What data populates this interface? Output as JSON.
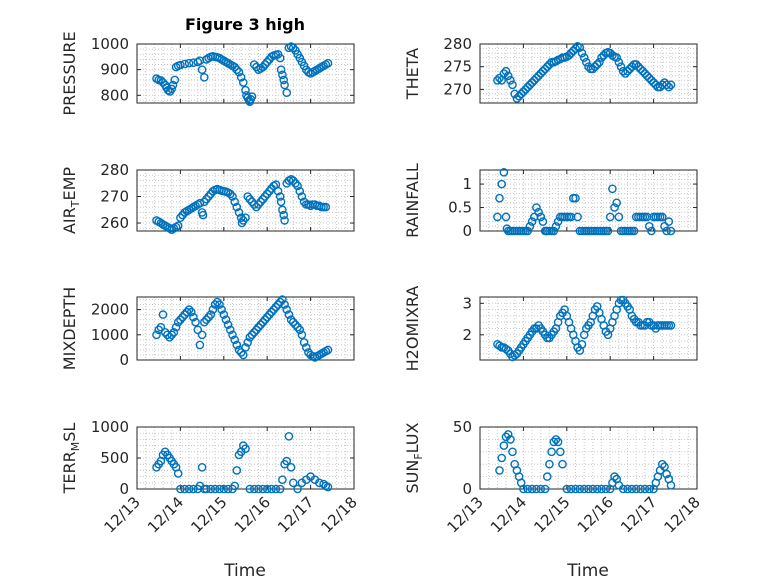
{
  "figure": {
    "title": "Figure 3 high",
    "marker_color": "#0072BD",
    "x_ticks": [
      "12/13",
      "12/14",
      "12/15",
      "12/16",
      "12/17",
      "12/18"
    ],
    "x_range": [
      13,
      18
    ],
    "xlabel": "Time"
  },
  "chart_data": [
    {
      "type": "scatter",
      "name": "pressure",
      "ylabel": "PRESSURE",
      "ylim": [
        770,
        1000
      ],
      "yticks": [
        800,
        900,
        1000
      ],
      "grid": true,
      "x": [
        13.45,
        13.5,
        13.55,
        13.6,
        13.65,
        13.68,
        13.72,
        13.76,
        13.8,
        13.83,
        13.87,
        13.9,
        13.95,
        14.0,
        14.1,
        14.2,
        14.3,
        14.4,
        14.45,
        14.5,
        14.55,
        14.6,
        14.65,
        14.7,
        14.75,
        14.8,
        14.85,
        14.9,
        14.95,
        15.0,
        15.05,
        15.1,
        15.15,
        15.2,
        15.25,
        15.3,
        15.35,
        15.4,
        15.45,
        15.5,
        15.52,
        15.55,
        15.58,
        15.6,
        15.62,
        15.65,
        15.7,
        15.75,
        15.8,
        15.85,
        15.9,
        15.95,
        16.0,
        16.05,
        16.1,
        16.15,
        16.2,
        16.25,
        16.3,
        16.32,
        16.35,
        16.38,
        16.4,
        16.45,
        16.5,
        16.55,
        16.6,
        16.65,
        16.7,
        16.75,
        16.8,
        16.85,
        16.9,
        16.95,
        17.0,
        17.05,
        17.1,
        17.15,
        17.2,
        17.25,
        17.3,
        17.35,
        17.4
      ],
      "y": [
        865,
        860,
        858,
        850,
        840,
        830,
        820,
        815,
        825,
        840,
        860,
        910,
        915,
        918,
        922,
        925,
        927,
        930,
        935,
        900,
        870,
        940,
        945,
        950,
        952,
        950,
        948,
        945,
        940,
        935,
        930,
        925,
        920,
        915,
        910,
        900,
        890,
        870,
        850,
        820,
        800,
        790,
        780,
        775,
        785,
        795,
        920,
        910,
        900,
        905,
        910,
        920,
        930,
        940,
        950,
        955,
        958,
        960,
        945,
        900,
        880,
        860,
        840,
        810,
        985,
        990,
        985,
        975,
        960,
        945,
        930,
        915,
        900,
        890,
        885,
        890,
        895,
        900,
        905,
        910,
        915,
        920,
        925
      ]
    },
    {
      "type": "scatter",
      "name": "theta",
      "ylabel": "THETA",
      "ylim": [
        267,
        280
      ],
      "yticks": [
        270,
        275,
        280
      ],
      "grid": true,
      "x": [
        13.4,
        13.45,
        13.5,
        13.55,
        13.6,
        13.65,
        13.7,
        13.75,
        13.8,
        13.85,
        13.9,
        13.95,
        14.0,
        14.05,
        14.1,
        14.15,
        14.2,
        14.25,
        14.3,
        14.35,
        14.4,
        14.45,
        14.5,
        14.55,
        14.6,
        14.65,
        14.7,
        14.75,
        14.8,
        14.85,
        14.9,
        14.95,
        15.0,
        15.05,
        15.1,
        15.15,
        15.2,
        15.25,
        15.3,
        15.35,
        15.4,
        15.45,
        15.5,
        15.55,
        15.6,
        15.65,
        15.7,
        15.75,
        15.8,
        15.85,
        15.9,
        15.95,
        16.0,
        16.05,
        16.1,
        16.15,
        16.2,
        16.25,
        16.3,
        16.35,
        16.4,
        16.45,
        16.5,
        16.55,
        16.6,
        16.65,
        16.7,
        16.75,
        16.8,
        16.85,
        16.9,
        16.95,
        17.0,
        17.05,
        17.1,
        17.15,
        17.2,
        17.25,
        17.3,
        17.35,
        17.4
      ],
      "y": [
        272,
        272.5,
        272,
        273.5,
        274,
        273,
        272,
        271,
        269,
        268,
        268.5,
        269,
        269.5,
        270,
        270.5,
        271,
        271.5,
        272,
        272.5,
        273,
        273.5,
        274,
        274.5,
        275,
        275.5,
        276,
        276,
        276.2,
        276.5,
        276.7,
        277,
        277,
        277.2,
        277.5,
        278,
        278.5,
        279,
        279.5,
        279.2,
        278,
        277,
        276,
        275,
        274.5,
        274.5,
        275,
        275.5,
        276,
        277,
        277.5,
        278,
        278.2,
        278,
        277.5,
        277.2,
        277,
        276,
        275,
        274,
        273.5,
        274,
        274.5,
        275,
        275.5,
        275.5,
        275,
        274.5,
        274,
        273.5,
        273,
        272.5,
        272,
        271.5,
        271,
        270.5,
        270.5,
        271,
        271.5,
        271,
        270.5,
        271
      ]
    },
    {
      "type": "scatter",
      "name": "air-temp",
      "ylabel": "AIR_TEMP",
      "ylim": [
        257,
        280
      ],
      "yticks": [
        260,
        270,
        280
      ],
      "grid": true,
      "x": [
        13.45,
        13.5,
        13.55,
        13.6,
        13.65,
        13.7,
        13.75,
        13.8,
        13.85,
        13.9,
        13.95,
        14.0,
        14.05,
        14.1,
        14.15,
        14.2,
        14.25,
        14.3,
        14.35,
        14.4,
        14.45,
        14.5,
        14.52,
        14.55,
        14.6,
        14.65,
        14.7,
        14.75,
        14.8,
        14.85,
        14.9,
        14.95,
        15.0,
        15.05,
        15.1,
        15.15,
        15.2,
        15.25,
        15.3,
        15.35,
        15.4,
        15.42,
        15.45,
        15.5,
        15.55,
        15.6,
        15.65,
        15.7,
        15.75,
        15.8,
        15.85,
        15.9,
        15.95,
        16.0,
        16.05,
        16.1,
        16.15,
        16.2,
        16.25,
        16.3,
        16.32,
        16.35,
        16.38,
        16.4,
        16.45,
        16.5,
        16.55,
        16.6,
        16.65,
        16.7,
        16.75,
        16.8,
        16.85,
        16.9,
        16.95,
        17.0,
        17.05,
        17.1,
        17.15,
        17.2,
        17.25,
        17.3,
        17.35
      ],
      "y": [
        261,
        260.5,
        260,
        259.5,
        259,
        258.5,
        258,
        257.5,
        258,
        258.5,
        259,
        262,
        263,
        264,
        264.5,
        265,
        265.5,
        266,
        266.5,
        267,
        267.5,
        264,
        263,
        268,
        269,
        270,
        271,
        272,
        272.5,
        272.8,
        272.5,
        272.2,
        272,
        271.8,
        271.5,
        271,
        270,
        268,
        266,
        264,
        262,
        260,
        261,
        262,
        270,
        269,
        268,
        267,
        266,
        267,
        268,
        269,
        270,
        271,
        272,
        273,
        274,
        274.5,
        272,
        270,
        268,
        265,
        263,
        261,
        275,
        276,
        276.5,
        276,
        275,
        274,
        272,
        270,
        268,
        267,
        267,
        266.5,
        267,
        267,
        266.5,
        266.5,
        266,
        266,
        266
      ]
    },
    {
      "type": "scatter",
      "name": "rainfall",
      "ylabel": "RAINFALL",
      "ylim": [
        0,
        1.3
      ],
      "yticks": [
        0,
        0.5,
        1
      ],
      "grid": true,
      "x": [
        13.4,
        13.45,
        13.5,
        13.55,
        13.6,
        13.62,
        13.65,
        13.7,
        13.75,
        13.8,
        13.85,
        13.9,
        13.95,
        14.0,
        14.05,
        14.1,
        14.15,
        14.2,
        14.25,
        14.3,
        14.35,
        14.4,
        14.45,
        14.5,
        14.52,
        14.55,
        14.6,
        14.65,
        14.7,
        14.75,
        14.8,
        14.85,
        14.9,
        14.95,
        15.0,
        15.05,
        15.1,
        15.15,
        15.2,
        15.25,
        15.3,
        15.35,
        15.4,
        15.45,
        15.5,
        15.55,
        15.6,
        15.65,
        15.7,
        15.75,
        15.8,
        15.85,
        15.9,
        15.95,
        16.0,
        16.05,
        16.1,
        16.15,
        16.2,
        16.25,
        16.3,
        16.35,
        16.4,
        16.45,
        16.5,
        16.55,
        16.6,
        16.65,
        16.7,
        16.75,
        16.8,
        16.85,
        16.9,
        16.95,
        17.0,
        17.05,
        17.1,
        17.15,
        17.2,
        17.25,
        17.3,
        17.35,
        17.4
      ],
      "y": [
        0.3,
        0.7,
        1.0,
        1.25,
        0.3,
        0.05,
        0,
        0,
        0,
        0,
        0,
        0,
        0,
        0,
        0,
        0,
        0.1,
        0.2,
        0.3,
        0.5,
        0.4,
        0.3,
        0.2,
        0,
        0,
        0,
        0,
        0,
        0,
        0.1,
        0.2,
        0.3,
        0.3,
        0.3,
        0.3,
        0.3,
        0.3,
        0.7,
        0.7,
        0.3,
        0,
        0,
        0,
        0,
        0,
        0,
        0,
        0,
        0,
        0,
        0,
        0,
        0,
        0,
        0.3,
        0.9,
        0.5,
        0.6,
        0.3,
        0,
        0,
        0,
        0,
        0,
        0,
        0,
        0.3,
        0.3,
        0.3,
        0.3,
        0.3,
        0.3,
        0.1,
        0,
        0.3,
        0.3,
        0.3,
        0.3,
        0.3,
        0.1,
        0,
        0.2,
        0
      ]
    },
    {
      "type": "scatter",
      "name": "mixdepth",
      "ylabel": "MIXDEPTH",
      "ylim": [
        0,
        2500
      ],
      "yticks": [
        0,
        1000,
        2000
      ],
      "grid": true,
      "x": [
        13.45,
        13.5,
        13.55,
        13.6,
        13.65,
        13.7,
        13.75,
        13.8,
        13.85,
        13.9,
        13.95,
        14.0,
        14.05,
        14.1,
        14.15,
        14.2,
        14.25,
        14.3,
        14.35,
        14.4,
        14.45,
        14.5,
        14.55,
        14.6,
        14.65,
        14.7,
        14.75,
        14.8,
        14.85,
        14.9,
        14.95,
        15.0,
        15.05,
        15.1,
        15.15,
        15.2,
        15.25,
        15.3,
        15.35,
        15.4,
        15.45,
        15.5,
        15.55,
        15.6,
        15.65,
        15.7,
        15.75,
        15.8,
        15.85,
        15.9,
        15.95,
        16.0,
        16.05,
        16.1,
        16.15,
        16.2,
        16.25,
        16.3,
        16.35,
        16.4,
        16.45,
        16.5,
        16.55,
        16.6,
        16.65,
        16.7,
        16.75,
        16.8,
        16.85,
        16.9,
        16.95,
        17.0,
        17.05,
        17.1,
        17.15,
        17.2,
        17.25,
        17.3,
        17.35,
        17.4
      ],
      "y": [
        1000,
        1200,
        1300,
        1800,
        1100,
        1000,
        900,
        1000,
        1100,
        1300,
        1500,
        1600,
        1700,
        1800,
        1900,
        2000,
        1900,
        1700,
        1500,
        1200,
        600,
        1000,
        1500,
        1600,
        1700,
        1800,
        2000,
        2200,
        2300,
        2200,
        2000,
        1800,
        1600,
        1400,
        1200,
        1000,
        800,
        600,
        400,
        300,
        200,
        500,
        700,
        900,
        1000,
        1100,
        1200,
        1300,
        1400,
        1500,
        1600,
        1700,
        1800,
        1900,
        2000,
        2100,
        2200,
        2300,
        2400,
        2200,
        2000,
        1800,
        1600,
        1500,
        1400,
        1300,
        1200,
        1000,
        700,
        500,
        300,
        200,
        150,
        100,
        150,
        200,
        250,
        300,
        350,
        400
      ]
    },
    {
      "type": "scatter",
      "name": "h2omixra",
      "ylabel": "H2OMIXRA",
      "ylim": [
        1.2,
        3.2
      ],
      "yticks": [
        2,
        3
      ],
      "grid": true,
      "x": [
        13.4,
        13.45,
        13.5,
        13.55,
        13.6,
        13.65,
        13.7,
        13.75,
        13.8,
        13.85,
        13.9,
        13.95,
        14.0,
        14.05,
        14.1,
        14.15,
        14.2,
        14.25,
        14.3,
        14.35,
        14.4,
        14.45,
        14.5,
        14.55,
        14.6,
        14.65,
        14.7,
        14.75,
        14.8,
        14.85,
        14.9,
        14.95,
        15.0,
        15.05,
        15.1,
        15.15,
        15.2,
        15.25,
        15.3,
        15.35,
        15.4,
        15.45,
        15.5,
        15.55,
        15.6,
        15.65,
        15.7,
        15.75,
        15.8,
        15.85,
        15.9,
        15.95,
        16.0,
        16.05,
        16.1,
        16.15,
        16.2,
        16.25,
        16.3,
        16.35,
        16.4,
        16.45,
        16.5,
        16.55,
        16.6,
        16.65,
        16.7,
        16.75,
        16.8,
        16.85,
        16.9,
        16.95,
        17.0,
        17.05,
        17.1,
        17.15,
        17.2,
        17.25,
        17.3,
        17.35,
        17.4
      ],
      "y": [
        1.7,
        1.65,
        1.6,
        1.6,
        1.55,
        1.5,
        1.4,
        1.3,
        1.35,
        1.4,
        1.5,
        1.6,
        1.7,
        1.8,
        1.9,
        2.0,
        2.1,
        2.2,
        2.2,
        2.3,
        2.2,
        2.1,
        2.0,
        1.9,
        1.9,
        2.0,
        2.1,
        2.2,
        2.4,
        2.6,
        2.7,
        2.8,
        2.6,
        2.4,
        2.2,
        2.0,
        1.8,
        1.6,
        1.5,
        1.7,
        2.0,
        2.2,
        2.3,
        2.4,
        2.6,
        2.8,
        2.9,
        2.7,
        2.5,
        2.3,
        2.1,
        2.0,
        2.2,
        2.4,
        2.6,
        2.8,
        3.0,
        3.1,
        3.1,
        3.0,
        2.9,
        2.8,
        2.6,
        2.5,
        2.4,
        2.4,
        2.3,
        2.3,
        2.3,
        2.4,
        2.4,
        2.3,
        2.3,
        2.2,
        2.3,
        2.3,
        2.3,
        2.3,
        2.3,
        2.3,
        2.3
      ]
    },
    {
      "type": "scatter",
      "name": "terr-msl",
      "ylabel": "TERR_MSL",
      "ylim": [
        0,
        1000
      ],
      "yticks": [
        0,
        500,
        1000
      ],
      "grid": true,
      "x": [
        13.45,
        13.5,
        13.55,
        13.6,
        13.65,
        13.7,
        13.75,
        13.8,
        13.85,
        13.9,
        13.95,
        14.0,
        14.1,
        14.2,
        14.3,
        14.4,
        14.45,
        14.5,
        14.55,
        14.6,
        14.7,
        14.8,
        14.9,
        15.0,
        15.1,
        15.2,
        15.25,
        15.3,
        15.35,
        15.4,
        15.45,
        15.5,
        15.6,
        15.7,
        15.8,
        15.9,
        16.0,
        16.1,
        16.2,
        16.3,
        16.35,
        16.4,
        16.45,
        16.5,
        16.55,
        16.6,
        16.7,
        16.8,
        16.9,
        17.0,
        17.1,
        17.2,
        17.3,
        17.35,
        17.4
      ],
      "y": [
        350,
        400,
        450,
        550,
        600,
        550,
        500,
        450,
        400,
        350,
        250,
        0,
        0,
        0,
        0,
        0,
        50,
        350,
        0,
        0,
        0,
        0,
        0,
        0,
        0,
        0,
        50,
        300,
        550,
        600,
        700,
        650,
        0,
        0,
        0,
        0,
        0,
        0,
        0,
        0,
        150,
        400,
        450,
        850,
        350,
        100,
        0,
        100,
        150,
        200,
        150,
        100,
        80,
        50,
        30
      ]
    },
    {
      "type": "scatter",
      "name": "sun-flux",
      "ylabel": "SUN_FLUX",
      "ylim": [
        0,
        50
      ],
      "yticks": [
        0,
        50
      ],
      "grid": true,
      "x": [
        13.45,
        13.5,
        13.55,
        13.6,
        13.65,
        13.7,
        13.75,
        13.8,
        13.85,
        13.9,
        13.95,
        14.0,
        14.1,
        14.2,
        14.3,
        14.4,
        14.5,
        14.55,
        14.6,
        14.65,
        14.7,
        14.75,
        14.8,
        14.85,
        14.9,
        15.0,
        15.1,
        15.2,
        15.3,
        15.4,
        15.5,
        15.6,
        15.7,
        15.8,
        15.9,
        16.0,
        16.05,
        16.1,
        16.15,
        16.2,
        16.3,
        16.4,
        16.5,
        16.6,
        16.7,
        16.8,
        16.9,
        17.0,
        17.05,
        17.1,
        17.15,
        17.2,
        17.25,
        17.3,
        17.35,
        17.4
      ],
      "y": [
        15,
        25,
        35,
        42,
        44,
        40,
        30,
        20,
        15,
        10,
        5,
        0,
        0,
        0,
        0,
        0,
        0,
        10,
        20,
        30,
        38,
        40,
        38,
        30,
        20,
        0,
        0,
        0,
        0,
        0,
        0,
        0,
        0,
        0,
        0,
        0,
        5,
        10,
        8,
        3,
        0,
        0,
        0,
        0,
        0,
        0,
        0,
        0,
        5,
        10,
        15,
        20,
        18,
        12,
        8,
        3
      ]
    }
  ]
}
